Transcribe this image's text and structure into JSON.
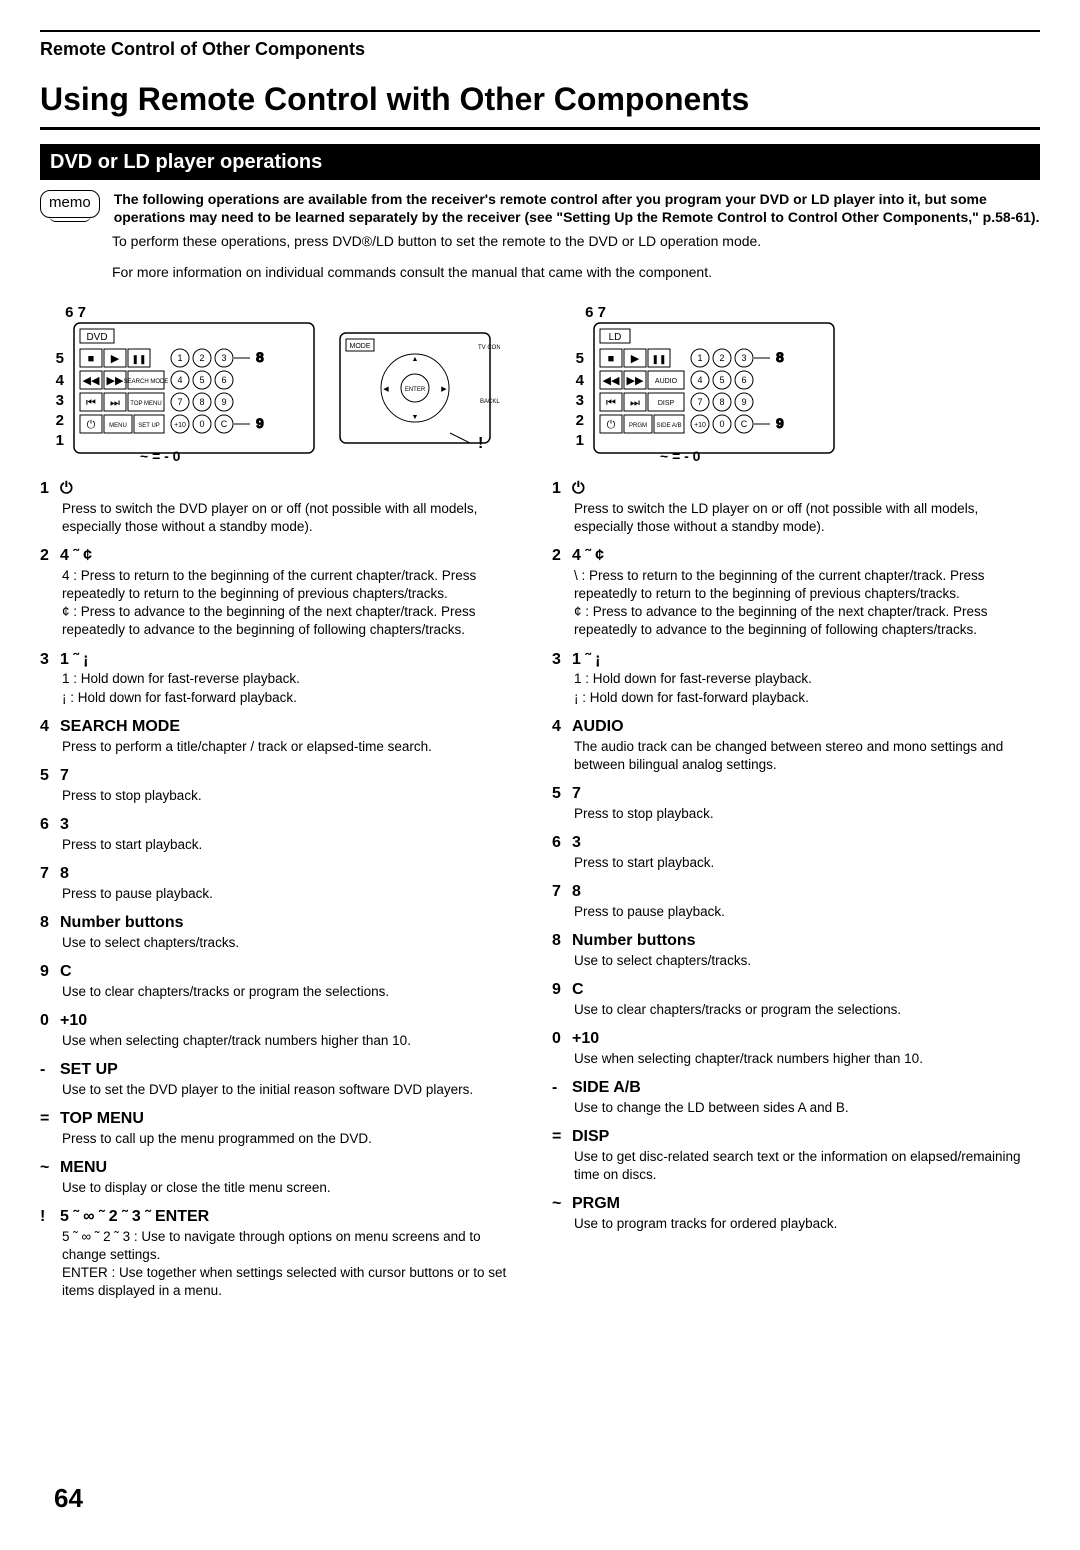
{
  "crumb": "Remote Control of Other Components",
  "title": "Using Remote Control with Other Components",
  "subhead": "DVD or LD player operations",
  "memo_badge": "memo",
  "memo_bold": "The following operations are available from the receiver's remote control after you program your DVD or LD player into it, but some operations may need to be learned separately by the receiver (see \"Setting Up the Remote Control to Control Other Components,\" p.58-61).",
  "memo_line1": "To perform these operations, press DVD®/LD button to set the remote to the DVD or LD operation mode.",
  "memo_line2": "For more information on individual commands consult the manual that came with the component.",
  "page_number": "64",
  "diag_left_label": "DVD",
  "diag_right_label": "LD",
  "diag_top_nums": "6  7",
  "diag_left_nums": [
    "5",
    "4",
    "3",
    "2",
    "1"
  ],
  "diag_right_nums": [
    "8",
    "",
    "",
    "",
    "9"
  ],
  "diag_bottom": "~  =  -    0",
  "diag_enter": "!",
  "dvd_items": [
    {
      "n": "1",
      "h": "⏻",
      "b": "Press to switch the DVD player on or off (not possible with all models, especially those without a standby mode)."
    },
    {
      "n": "2",
      "h": "4 ˜ ¢",
      "b": "4 : Press to return to the beginning of the current chapter/track. Press repeatedly to return to the beginning of previous chapters/tracks.\n¢ : Press to advance to the beginning of the next chapter/track. Press repeatedly to advance to the beginning of following chapters/tracks."
    },
    {
      "n": "3",
      "h": "1 ˜ ¡",
      "b": "1 : Hold down for fast-reverse playback.\n¡ : Hold down for fast-forward playback."
    },
    {
      "n": "4",
      "h": "SEARCH MODE",
      "b": "Press to perform a title/chapter / track or elapsed-time search."
    },
    {
      "n": "5",
      "h": "7",
      "b": "Press to stop playback."
    },
    {
      "n": "6",
      "h": "3",
      "b": "Press to start playback."
    },
    {
      "n": "7",
      "h": "8",
      "b": "Press to pause playback."
    },
    {
      "n": "8",
      "h": "Number buttons",
      "b": "Use to select chapters/tracks."
    },
    {
      "n": "9",
      "h": "C",
      "b": "Use to clear chapters/tracks or program the selections."
    },
    {
      "n": "0",
      "h": "+10",
      "b": "Use when selecting chapter/track numbers higher than 10."
    },
    {
      "n": "-",
      "h": "SET UP",
      "b": "Use to set the DVD player to the initial reason software DVD players."
    },
    {
      "n": "=",
      "h": "TOP MENU",
      "b": "Press to call up the menu programmed on the DVD."
    },
    {
      "n": "~",
      "h": "MENU",
      "b": "Use to display or close the title menu screen."
    },
    {
      "n": "!",
      "h": "5 ˜ ∞ ˜ 2 ˜ 3 ˜        ENTER",
      "b": "5 ˜ ∞ ˜ 2 ˜ 3 : Use to navigate through options on menu screens and to change settings.\nENTER : Use together when settings selected with cursor buttons or to set items displayed in a menu."
    }
  ],
  "ld_items": [
    {
      "n": "1",
      "h": "⏻",
      "b": "Press to switch the LD player on or off (not possible with all models, especially those without a standby mode)."
    },
    {
      "n": "2",
      "h": "4 ˜ ¢",
      "b": "\\ : Press to return to the beginning of the current chapter/track. Press repeatedly to return to the beginning of previous chapters/tracks.\n¢ : Press to advance to the beginning of the next chapter/track. Press repeatedly to advance to the beginning of following chapters/tracks."
    },
    {
      "n": "3",
      "h": "1 ˜ ¡",
      "b": "1 : Hold down for fast-reverse playback.\n¡ : Hold down for fast-forward playback."
    },
    {
      "n": "4",
      "h": "AUDIO",
      "b": "The audio track can be changed between stereo and mono settings and between bilingual analog settings."
    },
    {
      "n": "5",
      "h": "7",
      "b": "Press to stop playback."
    },
    {
      "n": "6",
      "h": "3",
      "b": "Press to start playback."
    },
    {
      "n": "7",
      "h": "8",
      "b": "Press to pause playback."
    },
    {
      "n": "8",
      "h": "Number buttons",
      "b": "Use to select chapters/tracks."
    },
    {
      "n": "9",
      "h": "C",
      "b": "Use to clear chapters/tracks or program the selections."
    },
    {
      "n": "0",
      "h": "+10",
      "b": "Use when selecting chapter/track numbers higher than 10."
    },
    {
      "n": "-",
      "h": "SIDE A/B",
      "b": "Use to change the LD between sides A and B."
    },
    {
      "n": "=",
      "h": "DISP",
      "b": "Use to get disc-related search text or the information on elapsed/remaining time on discs."
    },
    {
      "n": "~",
      "h": "PRGM",
      "b": "Use to program tracks for ordered playback."
    }
  ]
}
